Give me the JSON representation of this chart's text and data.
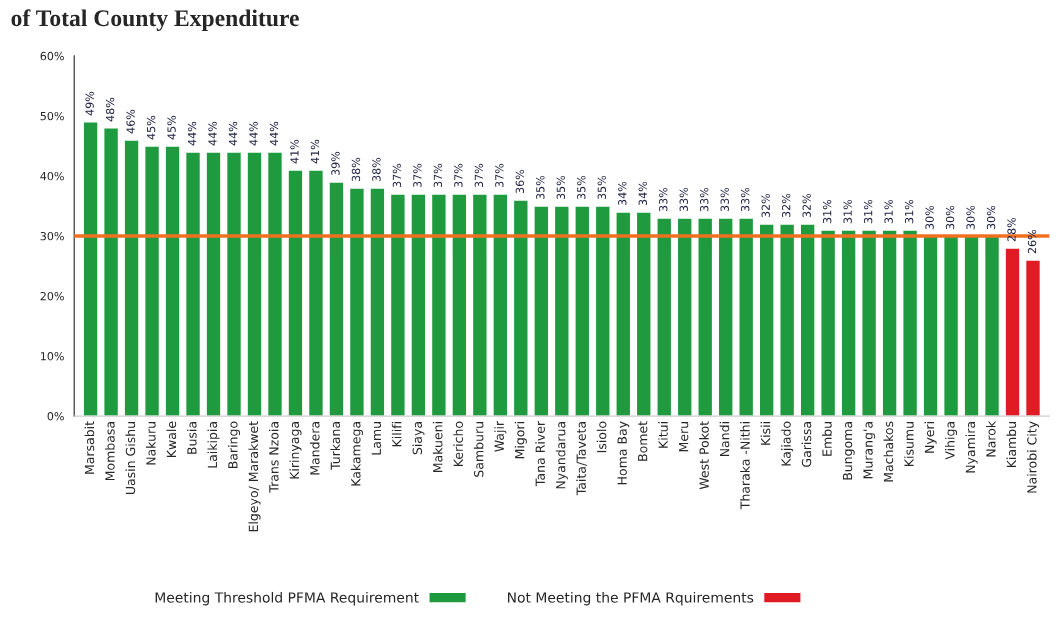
{
  "chart_data": {
    "type": "bar",
    "title": "of Total County Expenditure",
    "categories": [
      "Marsabit",
      "Mombasa",
      "Uasin Gishu",
      "Nakuru",
      "Kwale",
      "Busia",
      "Laikipia",
      "Baringo",
      "Elgeyo/ Marakwet",
      "Trans Nzoia",
      "Kirinyaga",
      "Mandera",
      "Turkana",
      "Kakamega",
      "Lamu",
      "Kilifi",
      "Siaya",
      "Makueni",
      "Kericho",
      "Samburu",
      "Wajir",
      "Migori",
      "Tana River",
      "Nyandarua",
      "Taita/Taveta",
      "Isiolo",
      "Homa Bay",
      "Bomet",
      "Kitui",
      "Meru",
      "West Pokot",
      "Nandi",
      "Tharaka -Nithi",
      "Kisii",
      "Kajiado",
      "Garissa",
      "Embu",
      "Bungoma",
      "Murang'a",
      "Machakos",
      "Kisumu",
      "Nyeri",
      "Vihiga",
      "Nyamira",
      "Narok",
      "Kiambu",
      "Nairobi City"
    ],
    "series": [
      {
        "name": "Meeting Threshold PFMA Requirement",
        "color": "#1f9a3e",
        "values": [
          49,
          48,
          46,
          45,
          45,
          44,
          44,
          44,
          44,
          44,
          41,
          41,
          39,
          38,
          38,
          37,
          37,
          37,
          37,
          37,
          37,
          36,
          35,
          35,
          35,
          35,
          34,
          34,
          33,
          33,
          33,
          33,
          33,
          32,
          32,
          32,
          31,
          31,
          31,
          31,
          31,
          30,
          30,
          30,
          30,
          null,
          null
        ]
      },
      {
        "name": "Not Meeting the PFMA Rquirements",
        "color": "#e01b24",
        "values": [
          null,
          null,
          null,
          null,
          null,
          null,
          null,
          null,
          null,
          null,
          null,
          null,
          null,
          null,
          null,
          null,
          null,
          null,
          null,
          null,
          null,
          null,
          null,
          null,
          null,
          null,
          null,
          null,
          null,
          null,
          null,
          null,
          null,
          null,
          null,
          null,
          null,
          null,
          null,
          null,
          null,
          null,
          null,
          null,
          null,
          28,
          26
        ]
      }
    ],
    "ylim": [
      0,
      60
    ],
    "yticks": [
      {
        "value": 0,
        "label": "0%"
      },
      {
        "value": 10,
        "label": "10%"
      },
      {
        "value": 20,
        "label": "20%"
      },
      {
        "value": 30,
        "label": "30%"
      },
      {
        "value": 40,
        "label": "40%"
      },
      {
        "value": 50,
        "label": "50%"
      },
      {
        "value": 60,
        "label": "60%"
      }
    ],
    "value_labels": [
      "49%",
      "48%",
      "46%",
      "45%",
      "45%",
      "44%",
      "44%",
      "44%",
      "44%",
      "44%",
      "41%",
      "41%",
      "39%",
      "38%",
      "38%",
      "37%",
      "37%",
      "37%",
      "37%",
      "37%",
      "37%",
      "36%",
      "35%",
      "35%",
      "35%",
      "35%",
      "34%",
      "34%",
      "33%",
      "33%",
      "33%",
      "33%",
      "33%",
      "32%",
      "32%",
      "32%",
      "31%",
      "31%",
      "31%",
      "31%",
      "31%",
      "30%",
      "30%",
      "30%",
      "30%",
      "28%",
      "26%"
    ],
    "ref_lines": [
      {
        "axis": "y",
        "value": 30,
        "color": "#f07020"
      }
    ],
    "grid": false,
    "legend": "bottom"
  }
}
